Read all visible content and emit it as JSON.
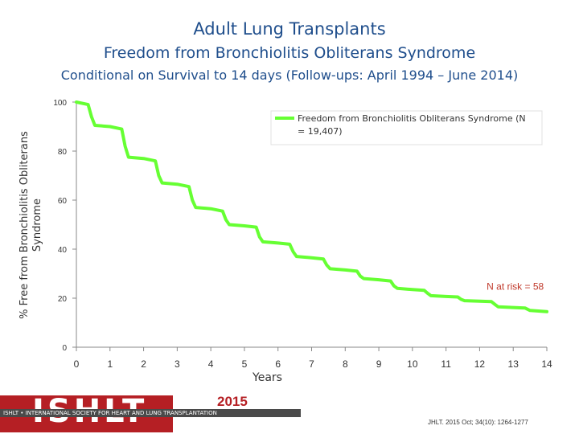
{
  "title": "Adult Lung Transplants",
  "subtitle": "Freedom from Bronchiolitis Obliterans Syndrome",
  "subtitle2": "Conditional on Survival to 14 days (Follow-ups: April 1994 – June 2014)",
  "footer": {
    "logo_text": "ISHLT",
    "org_name": "ISHLT • INTERNATIONAL SOCIETY FOR HEART AND LUNG TRANSPLANTATION",
    "year": "2015",
    "citation": "JHLT. 2015 Oct; 34(10): 1264-1277"
  },
  "colors": {
    "title": "#1f4e8c",
    "line": "#66ff33",
    "brand": "#b51f24"
  },
  "chart_data": {
    "type": "line",
    "xlabel": "Years",
    "ylabel": "% Free from Bronchiolitis Obliterans Syndrome",
    "xlim": [
      0,
      14
    ],
    "ylim": [
      0,
      100
    ],
    "xticks": [
      "0",
      "1",
      "2",
      "3",
      "4",
      "5",
      "6",
      "7",
      "8",
      "9",
      "10",
      "11",
      "12",
      "13",
      "14"
    ],
    "yticks": [
      "0",
      "20",
      "40",
      "60",
      "80",
      "100"
    ],
    "legend": "top-right",
    "grid": false,
    "series": [
      {
        "name": "Freedom from Bronchiolitis Obliterans Syndrome (N = 19,407)",
        "x": [
          0,
          0.35,
          0.45,
          0.55,
          1.0,
          1.35,
          1.45,
          1.55,
          2.0,
          2.35,
          2.45,
          2.55,
          3.0,
          3.35,
          3.45,
          3.55,
          4.0,
          4.35,
          4.45,
          4.55,
          5.0,
          5.35,
          5.45,
          5.55,
          6.0,
          6.35,
          6.45,
          6.55,
          7.0,
          7.35,
          7.45,
          7.55,
          8.0,
          8.35,
          8.45,
          8.55,
          9.0,
          9.35,
          9.45,
          9.55,
          10.0,
          10.35,
          10.45,
          10.55,
          11.0,
          11.35,
          11.45,
          11.55,
          12.0,
          12.35,
          12.45,
          12.55,
          13.0,
          13.35,
          13.5,
          14.0
        ],
        "y": [
          100,
          99,
          94,
          90.5,
          90,
          89,
          82,
          77.5,
          77,
          76,
          70,
          67,
          66.5,
          65.5,
          60,
          57,
          56.5,
          55.5,
          52,
          50,
          49.5,
          49,
          45,
          43,
          42.5,
          42,
          39,
          37,
          36.5,
          36,
          33.5,
          32,
          31.5,
          31,
          29,
          28,
          27.5,
          27,
          25,
          24,
          23.5,
          23.2,
          22,
          21,
          20.7,
          20.5,
          19.5,
          19,
          18.8,
          18.6,
          17.5,
          16.5,
          16.2,
          16,
          15,
          14.5
        ]
      }
    ],
    "annotations": [
      {
        "text": "N at risk = 58",
        "x": 13.0,
        "y": 26
      }
    ]
  }
}
